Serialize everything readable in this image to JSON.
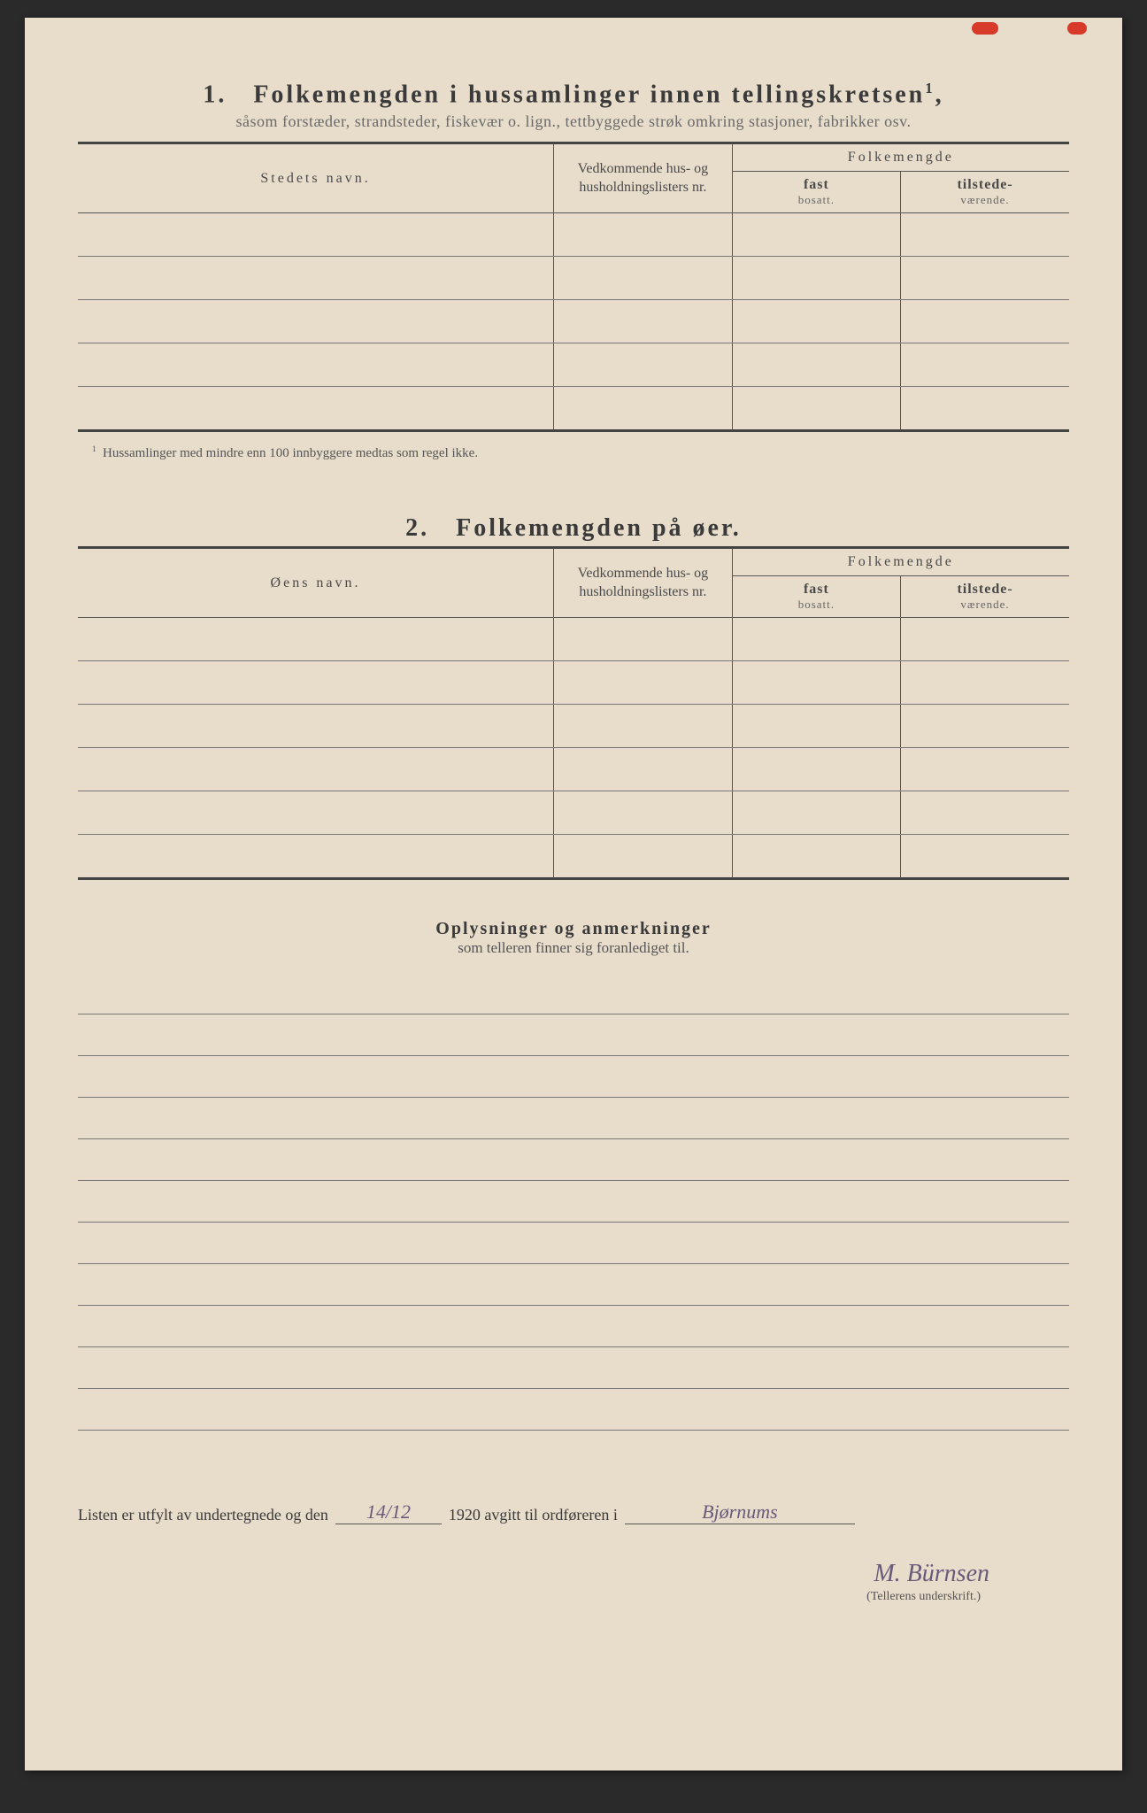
{
  "section1": {
    "number": "1.",
    "title": "Folkemengden i hussamlinger innen tellingskretsen",
    "title_sup": "1",
    "subtitle": "såsom forstæder, strandsteder, fiskevær o. lign., tettbyggede strøk omkring stasjoner, fabrikker osv.",
    "col_name": "Stedets navn.",
    "col_lists": "Vedkommende hus- og husholdningslisters nr.",
    "col_pop": "Folkemengde",
    "col_fast": "fast",
    "col_fast2": "bosatt.",
    "col_til": "tilstede-",
    "col_til2": "værende.",
    "row_count": 5,
    "footnote_mark": "1",
    "footnote": "Hussamlinger med mindre enn 100 innbyggere medtas som regel ikke."
  },
  "section2": {
    "number": "2.",
    "title": "Folkemengden på øer.",
    "col_name": "Øens navn.",
    "col_lists": "Vedkommende hus- og husholdningslisters nr.",
    "col_pop": "Folkemengde",
    "col_fast": "fast",
    "col_fast2": "bosatt.",
    "col_til": "tilstede-",
    "col_til2": "værende.",
    "row_count": 6
  },
  "remarks": {
    "title": "Oplysninger og anmerkninger",
    "subtitle": "som telleren finner sig foranlediget til.",
    "line_count": 11
  },
  "signature": {
    "prefix": "Listen er utfylt av undertegnede og den",
    "date": "14/12",
    "year": "1920",
    "mid": "avgitt til ordføreren i",
    "place": "Bjørnums",
    "name": "M. Bürnsen",
    "caption": "(Tellerens underskrift.)"
  },
  "styling": {
    "page_bg": "#e8dccb",
    "text_color": "#3a3a3a",
    "border_color": "#555",
    "thick_border": "3px solid #444",
    "title_fontsize": 28,
    "body_fontsize": 18,
    "handwriting_color": "#6a5a7a",
    "red_mark_color": "#d83a2a"
  }
}
